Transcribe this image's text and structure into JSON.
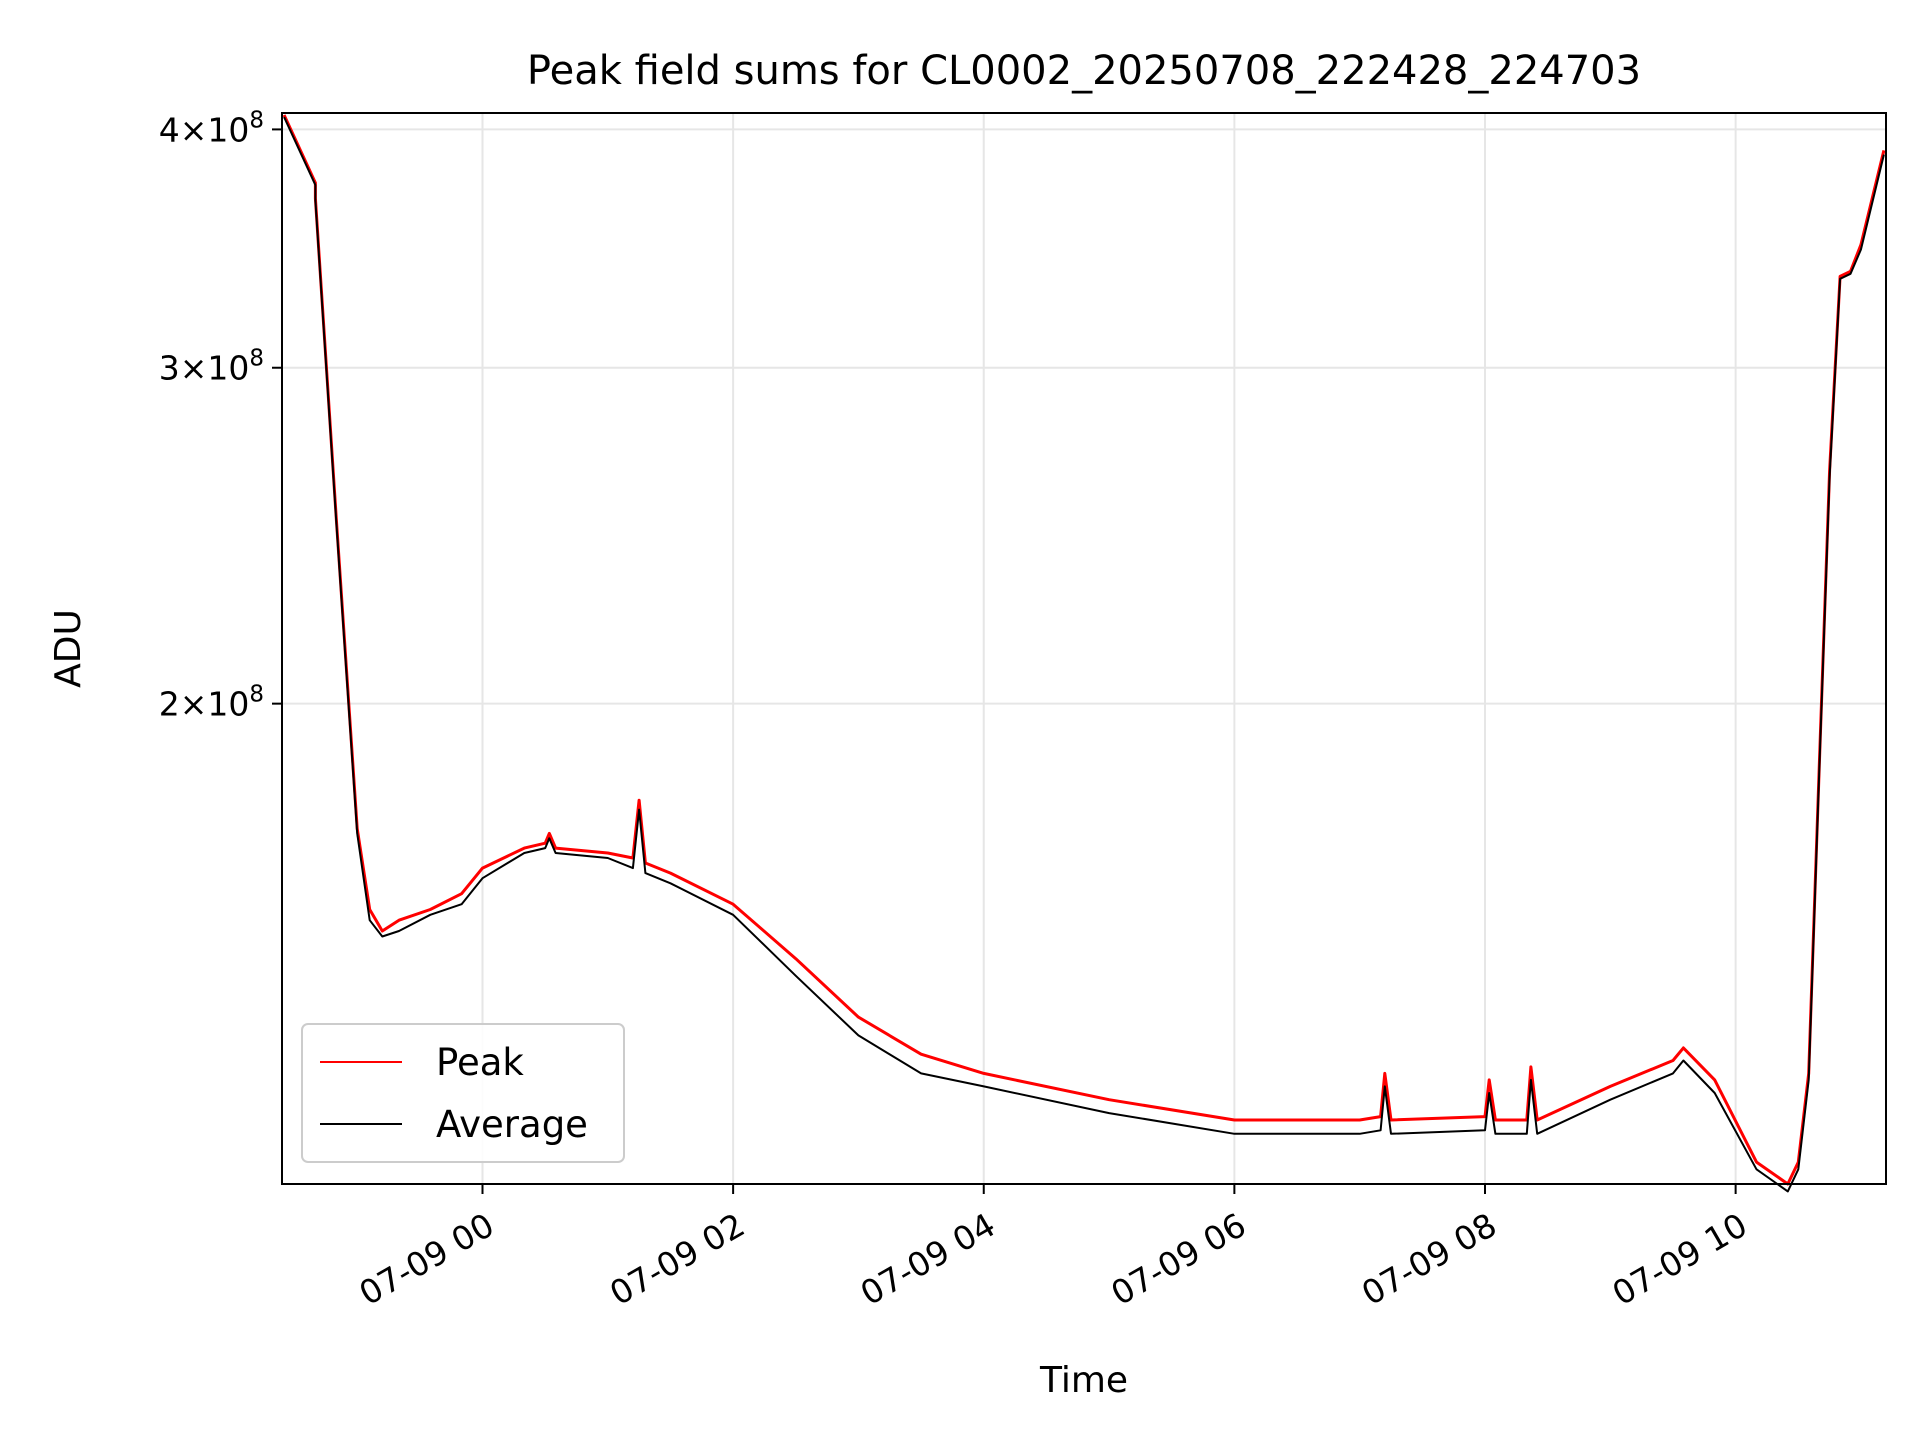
{
  "chart_data": {
    "type": "line",
    "title": "Peak field sums for CL0002_20250708_222428_224703",
    "xlabel": "Time",
    "ylabel": "ADU",
    "y_scale": "log",
    "ylim": [
      112000000,
      408000000
    ],
    "xlim": [
      "2025-07-08 22:24",
      "2025-07-09 11:12"
    ],
    "grid": true,
    "legend_position": "lower-left",
    "x_ticks": [
      {
        "time": "2025-07-09 00:00",
        "label": "07-09 00"
      },
      {
        "time": "2025-07-09 02:00",
        "label": "07-09 02"
      },
      {
        "time": "2025-07-09 04:00",
        "label": "07-09 04"
      },
      {
        "time": "2025-07-09 06:00",
        "label": "07-09 06"
      },
      {
        "time": "2025-07-09 08:00",
        "label": "07-09 08"
      },
      {
        "time": "2025-07-09 10:00",
        "label": "07-09 10"
      }
    ],
    "y_ticks": [
      {
        "value": 200000000,
        "mantissa": "2",
        "exponent": "8"
      },
      {
        "value": 300000000,
        "mantissa": "3",
        "exponent": "8"
      },
      {
        "value": 400000000,
        "mantissa": "4",
        "exponent": "8"
      }
    ],
    "series": [
      {
        "name": "Peak",
        "color": "#ff0000",
        "x": [
          "2025-07-08 22:25",
          "2025-07-08 22:40",
          "2025-07-08 22:40",
          "2025-07-08 22:50",
          "2025-07-08 23:00",
          "2025-07-08 23:06",
          "2025-07-08 23:12",
          "2025-07-08 23:20",
          "2025-07-08 23:35",
          "2025-07-08 23:50",
          "2025-07-09 00:00",
          "2025-07-09 00:20",
          "2025-07-09 00:30",
          "2025-07-09 00:32",
          "2025-07-09 00:35",
          "2025-07-09 01:00",
          "2025-07-09 01:12",
          "2025-07-09 01:15",
          "2025-07-09 01:18",
          "2025-07-09 01:30",
          "2025-07-09 02:00",
          "2025-07-09 02:30",
          "2025-07-09 03:00",
          "2025-07-09 03:30",
          "2025-07-09 04:00",
          "2025-07-09 05:00",
          "2025-07-09 06:00",
          "2025-07-09 07:00",
          "2025-07-09 07:10",
          "2025-07-09 07:12",
          "2025-07-09 07:15",
          "2025-07-09 08:00",
          "2025-07-09 08:02",
          "2025-07-09 08:05",
          "2025-07-09 08:20",
          "2025-07-09 08:22",
          "2025-07-09 08:25",
          "2025-07-09 09:00",
          "2025-07-09 09:30",
          "2025-07-09 09:35",
          "2025-07-09 09:50",
          "2025-07-09 10:10",
          "2025-07-09 10:25",
          "2025-07-09 10:30",
          "2025-07-09 10:35",
          "2025-07-09 10:40",
          "2025-07-09 10:45",
          "2025-07-09 10:50",
          "2025-07-09 10:55",
          "2025-07-09 11:00",
          "2025-07-09 11:11"
        ],
        "y": [
          407000000,
          375000000,
          368000000,
          250000000,
          172000000,
          156000000,
          152000000,
          154000000,
          156000000,
          159000000,
          164000000,
          168000000,
          169000000,
          171000000,
          168000000,
          167000000,
          166000000,
          178000000,
          165000000,
          163000000,
          157000000,
          147000000,
          137000000,
          131000000,
          128000000,
          124000000,
          121000000,
          121000000,
          121500000,
          128000000,
          121000000,
          121500000,
          127000000,
          121000000,
          121000000,
          129000000,
          121000000,
          126000000,
          130000000,
          132000000,
          127000000,
          115000000,
          112000000,
          115000000,
          128000000,
          185000000,
          265000000,
          335000000,
          337000000,
          348000000,
          390000000
        ]
      },
      {
        "name": "Average",
        "color": "#000000",
        "x": [
          "2025-07-08 22:25",
          "2025-07-08 22:40",
          "2025-07-08 22:40",
          "2025-07-08 22:50",
          "2025-07-08 23:00",
          "2025-07-08 23:06",
          "2025-07-08 23:12",
          "2025-07-08 23:20",
          "2025-07-08 23:35",
          "2025-07-08 23:50",
          "2025-07-09 00:00",
          "2025-07-09 00:20",
          "2025-07-09 00:30",
          "2025-07-09 00:32",
          "2025-07-09 00:35",
          "2025-07-09 01:00",
          "2025-07-09 01:12",
          "2025-07-09 01:15",
          "2025-07-09 01:18",
          "2025-07-09 01:30",
          "2025-07-09 02:00",
          "2025-07-09 02:30",
          "2025-07-09 03:00",
          "2025-07-09 03:30",
          "2025-07-09 04:00",
          "2025-07-09 05:00",
          "2025-07-09 06:00",
          "2025-07-09 07:00",
          "2025-07-09 07:10",
          "2025-07-09 07:12",
          "2025-07-09 07:15",
          "2025-07-09 08:00",
          "2025-07-09 08:02",
          "2025-07-09 08:05",
          "2025-07-09 08:20",
          "2025-07-09 08:22",
          "2025-07-09 08:25",
          "2025-07-09 09:00",
          "2025-07-09 09:30",
          "2025-07-09 09:35",
          "2025-07-09 09:50",
          "2025-07-09 10:10",
          "2025-07-09 10:25",
          "2025-07-09 10:30",
          "2025-07-09 10:35",
          "2025-07-09 10:40",
          "2025-07-09 10:45",
          "2025-07-09 10:50",
          "2025-07-09 10:55",
          "2025-07-09 11:00",
          "2025-07-09 11:11"
        ],
        "y": [
          406000000,
          374000000,
          367000000,
          249000000,
          171000000,
          154000000,
          151000000,
          152000000,
          155000000,
          157000000,
          162000000,
          167000000,
          168000000,
          170000000,
          167000000,
          166000000,
          164000000,
          176000000,
          163000000,
          161000000,
          155000000,
          144000000,
          134000000,
          128000000,
          126000000,
          122000000,
          119000000,
          119000000,
          119500000,
          126000000,
          119000000,
          119500000,
          125000000,
          119000000,
          119000000,
          127000000,
          119000000,
          124000000,
          128000000,
          130000000,
          125000000,
          114000000,
          111000000,
          114000000,
          127000000,
          184000000,
          263000000,
          334000000,
          336000000,
          346000000,
          388000000
        ]
      }
    ]
  }
}
